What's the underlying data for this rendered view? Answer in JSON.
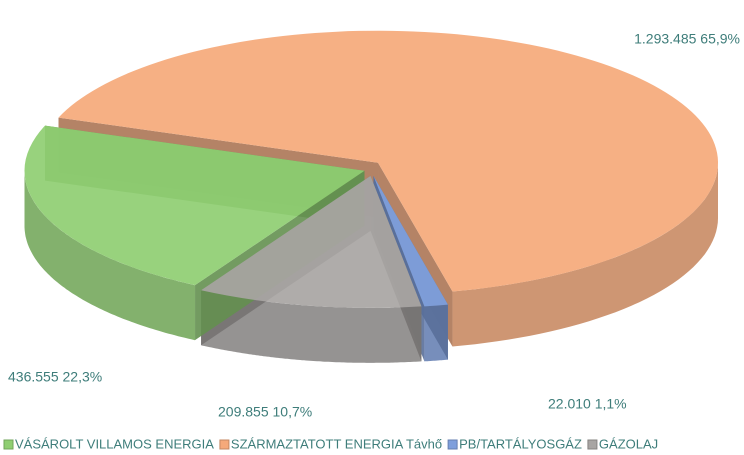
{
  "chart_data": {
    "type": "pie",
    "categories": [
      "VÁSÁROLT VILLAMOS ENERGIA",
      "SZÁRMAZTATOTT ENERGIA Távhő",
      "PB/TARTÁLYOSGÁZ",
      "GÁZOLAJ"
    ],
    "values": [
      436555,
      1293485,
      22010,
      209855
    ],
    "value_labels": [
      "436.555 22,3%",
      "1.293.485 65,9%",
      "22.010 1,1%",
      "209.855 10,7%"
    ],
    "colors": [
      "#8fce72",
      "#f5a97a",
      "#7f9fdc",
      "#a8a5a3"
    ],
    "legend": "bottom"
  }
}
